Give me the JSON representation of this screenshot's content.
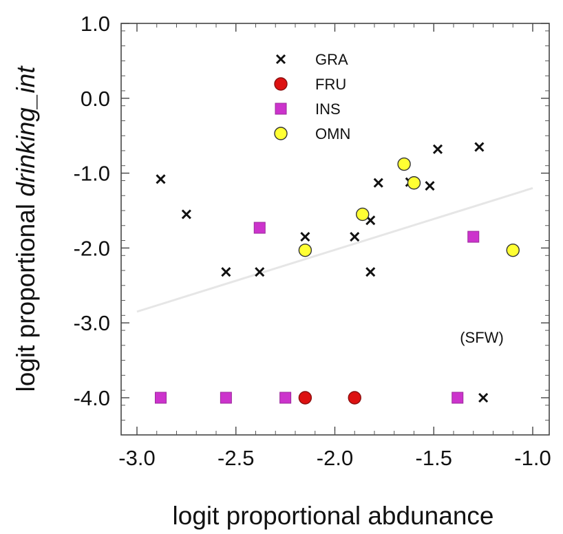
{
  "chart_data": {
    "type": "scatter",
    "xlabel": "logit proportional abdunance",
    "ylabel_prefix": "logit proportional ",
    "ylabel_italic": "drinking_int",
    "annotation": "(SFW)",
    "xlim": [
      -3.0,
      -1.0
    ],
    "ylim": [
      -4.5,
      1.0
    ],
    "x_ticks": [
      -3.0,
      -2.5,
      -2.0,
      -1.5,
      -1.0
    ],
    "x_tick_labels": [
      "-3.0",
      "-2.5",
      "-2.0",
      "-1.5",
      "-1.0"
    ],
    "y_ticks": [
      1.0,
      0.0,
      -1.0,
      -2.0,
      -3.0,
      -4.0
    ],
    "y_tick_labels": [
      "1.0",
      "0.0",
      "-1.0",
      "-2.0",
      "-3.0",
      "-4.0"
    ],
    "grid": false,
    "legend_position": "top-center",
    "trend_line": {
      "x": [
        -3.0,
        -1.0
      ],
      "y": [
        -2.85,
        -1.2
      ],
      "color": "#e6e6e6"
    },
    "series": [
      {
        "name": "GRA",
        "marker": "x",
        "color": "#111111",
        "points": [
          [
            -2.88,
            -1.08
          ],
          [
            -2.75,
            -1.55
          ],
          [
            -2.55,
            -2.32
          ],
          [
            -2.38,
            -2.32
          ],
          [
            -2.15,
            -1.85
          ],
          [
            -1.9,
            -1.85
          ],
          [
            -1.82,
            -1.63
          ],
          [
            -1.82,
            -2.32
          ],
          [
            -1.78,
            -1.13
          ],
          [
            -1.62,
            -1.12
          ],
          [
            -1.52,
            -1.17
          ],
          [
            -1.48,
            -0.68
          ],
          [
            -1.27,
            -0.65
          ],
          [
            -1.25,
            -4.0
          ]
        ]
      },
      {
        "name": "FRU",
        "marker": "circle",
        "color": "#dd1111",
        "points": [
          [
            -2.15,
            -4.0
          ],
          [
            -1.9,
            -4.0
          ]
        ]
      },
      {
        "name": "INS",
        "marker": "square",
        "color": "#cc33cc",
        "points": [
          [
            -2.38,
            -1.73
          ],
          [
            -1.3,
            -1.85
          ],
          [
            -2.88,
            -4.0
          ],
          [
            -2.55,
            -4.0
          ],
          [
            -2.25,
            -4.0
          ],
          [
            -1.38,
            -4.0
          ]
        ]
      },
      {
        "name": "OMN",
        "marker": "circle",
        "color": "#ffff33",
        "points": [
          [
            -2.15,
            -2.03
          ],
          [
            -1.86,
            -1.55
          ],
          [
            -1.65,
            -0.88
          ],
          [
            -1.6,
            -1.13
          ],
          [
            -1.1,
            -2.03
          ]
        ]
      }
    ]
  }
}
